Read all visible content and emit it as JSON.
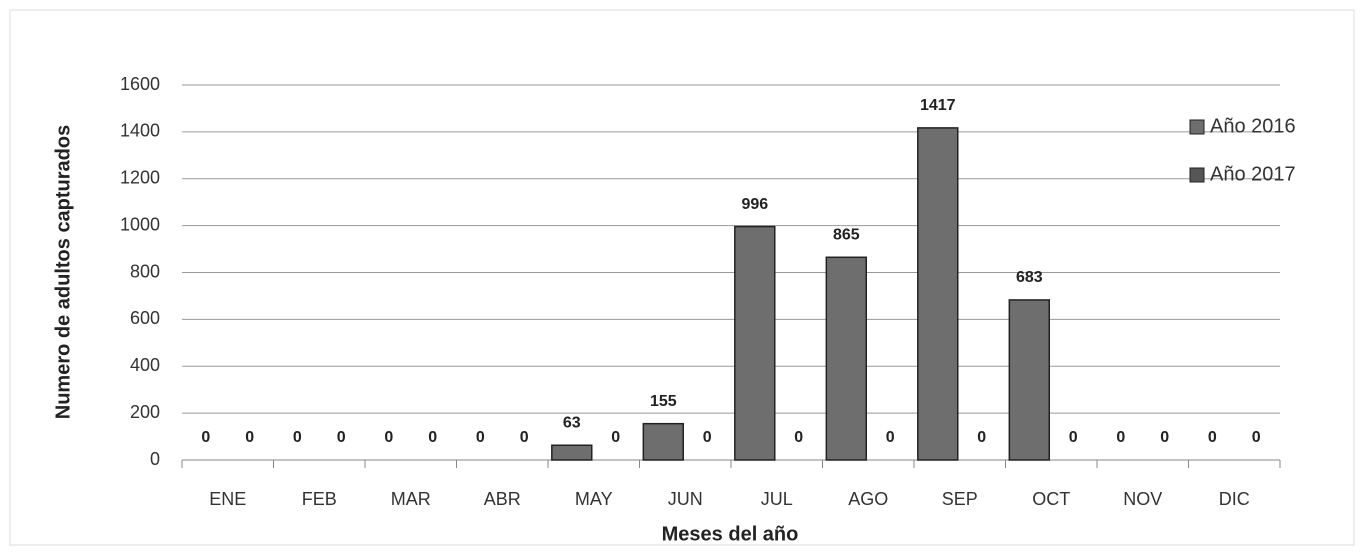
{
  "chart_data": {
    "type": "bar",
    "x_label": "Meses del año",
    "y_label": "Numero de adultos capturados",
    "categories": [
      "ENE",
      "FEB",
      "MAR",
      "ABR",
      "MAY",
      "JUN",
      "JUL",
      "AGO",
      "SEP",
      "OCT",
      "NOV",
      "DIC"
    ],
    "series": [
      {
        "name": "Año 2016",
        "color": "#6e6e6e",
        "values": [
          0,
          0,
          0,
          0,
          63,
          155,
          996,
          865,
          1417,
          683,
          0,
          0
        ]
      },
      {
        "name": "Año 2017",
        "color": "#565656",
        "values": [
          0,
          0,
          0,
          0,
          0,
          0,
          0,
          0,
          0,
          0,
          0,
          0
        ]
      }
    ],
    "ylim": [
      0,
      1600
    ],
    "yticks": [
      0,
      200,
      400,
      600,
      800,
      1000,
      1200,
      1400,
      1600
    ],
    "grid": true,
    "legend": "right"
  }
}
